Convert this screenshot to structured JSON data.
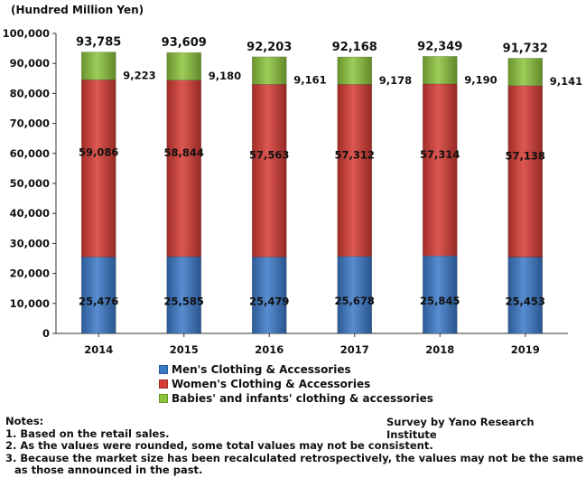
{
  "chart_data": {
    "type": "bar",
    "stacked": true,
    "unit_label": "(Hundred Million Yen)",
    "categories": [
      "2014",
      "2015",
      "2016",
      "2017",
      "2018",
      "2019"
    ],
    "series": [
      {
        "name": "Men's Clothing & Accessories",
        "values": [
          25476,
          25585,
          25479,
          25678,
          25845,
          25453
        ],
        "color": "#3a79c8"
      },
      {
        "name": "Women's Clothing & Accessories",
        "values": [
          59086,
          58844,
          57563,
          57312,
          57314,
          57138
        ],
        "color": "#d63b33"
      },
      {
        "name": "Babies' and infants' clothing & accessories",
        "values": [
          9223,
          9180,
          9161,
          9178,
          9190,
          9141
        ],
        "color": "#8cc43c"
      }
    ],
    "series_labels": [
      [
        "25,476",
        "25,585",
        "25,479",
        "25,678",
        "25,845",
        "25,453"
      ],
      [
        "59,086",
        "58,844",
        "57,563",
        "57,312",
        "57,314",
        "57,138"
      ],
      [
        "9,223",
        "9,180",
        "9,161",
        "9,178",
        "9,190",
        "9,141"
      ]
    ],
    "totals": [
      "93,785",
      "93,609",
      "92,203",
      "92,168",
      "92,349",
      "91,732"
    ],
    "ylim": [
      0,
      100000
    ],
    "yticks": [
      0,
      10000,
      20000,
      30000,
      40000,
      50000,
      60000,
      70000,
      80000,
      90000,
      100000
    ],
    "ytick_labels": [
      "0",
      "10,000",
      "20,000",
      "30,000",
      "40,000",
      "50,000",
      "60,000",
      "70,000",
      "80,000",
      "90,000",
      "100,000"
    ],
    "legend_position": "bottom",
    "grid": false
  },
  "notes": {
    "heading": "Notes:",
    "items": [
      "1. Based on the retail sales.",
      "2. As the values were rounded, some total values may not be consistent.",
      "3. Because the market size has been recalculated retrospectively, the values may not be the same",
      "as those announced in the past."
    ]
  },
  "source": "Survey by Yano Research Institute"
}
